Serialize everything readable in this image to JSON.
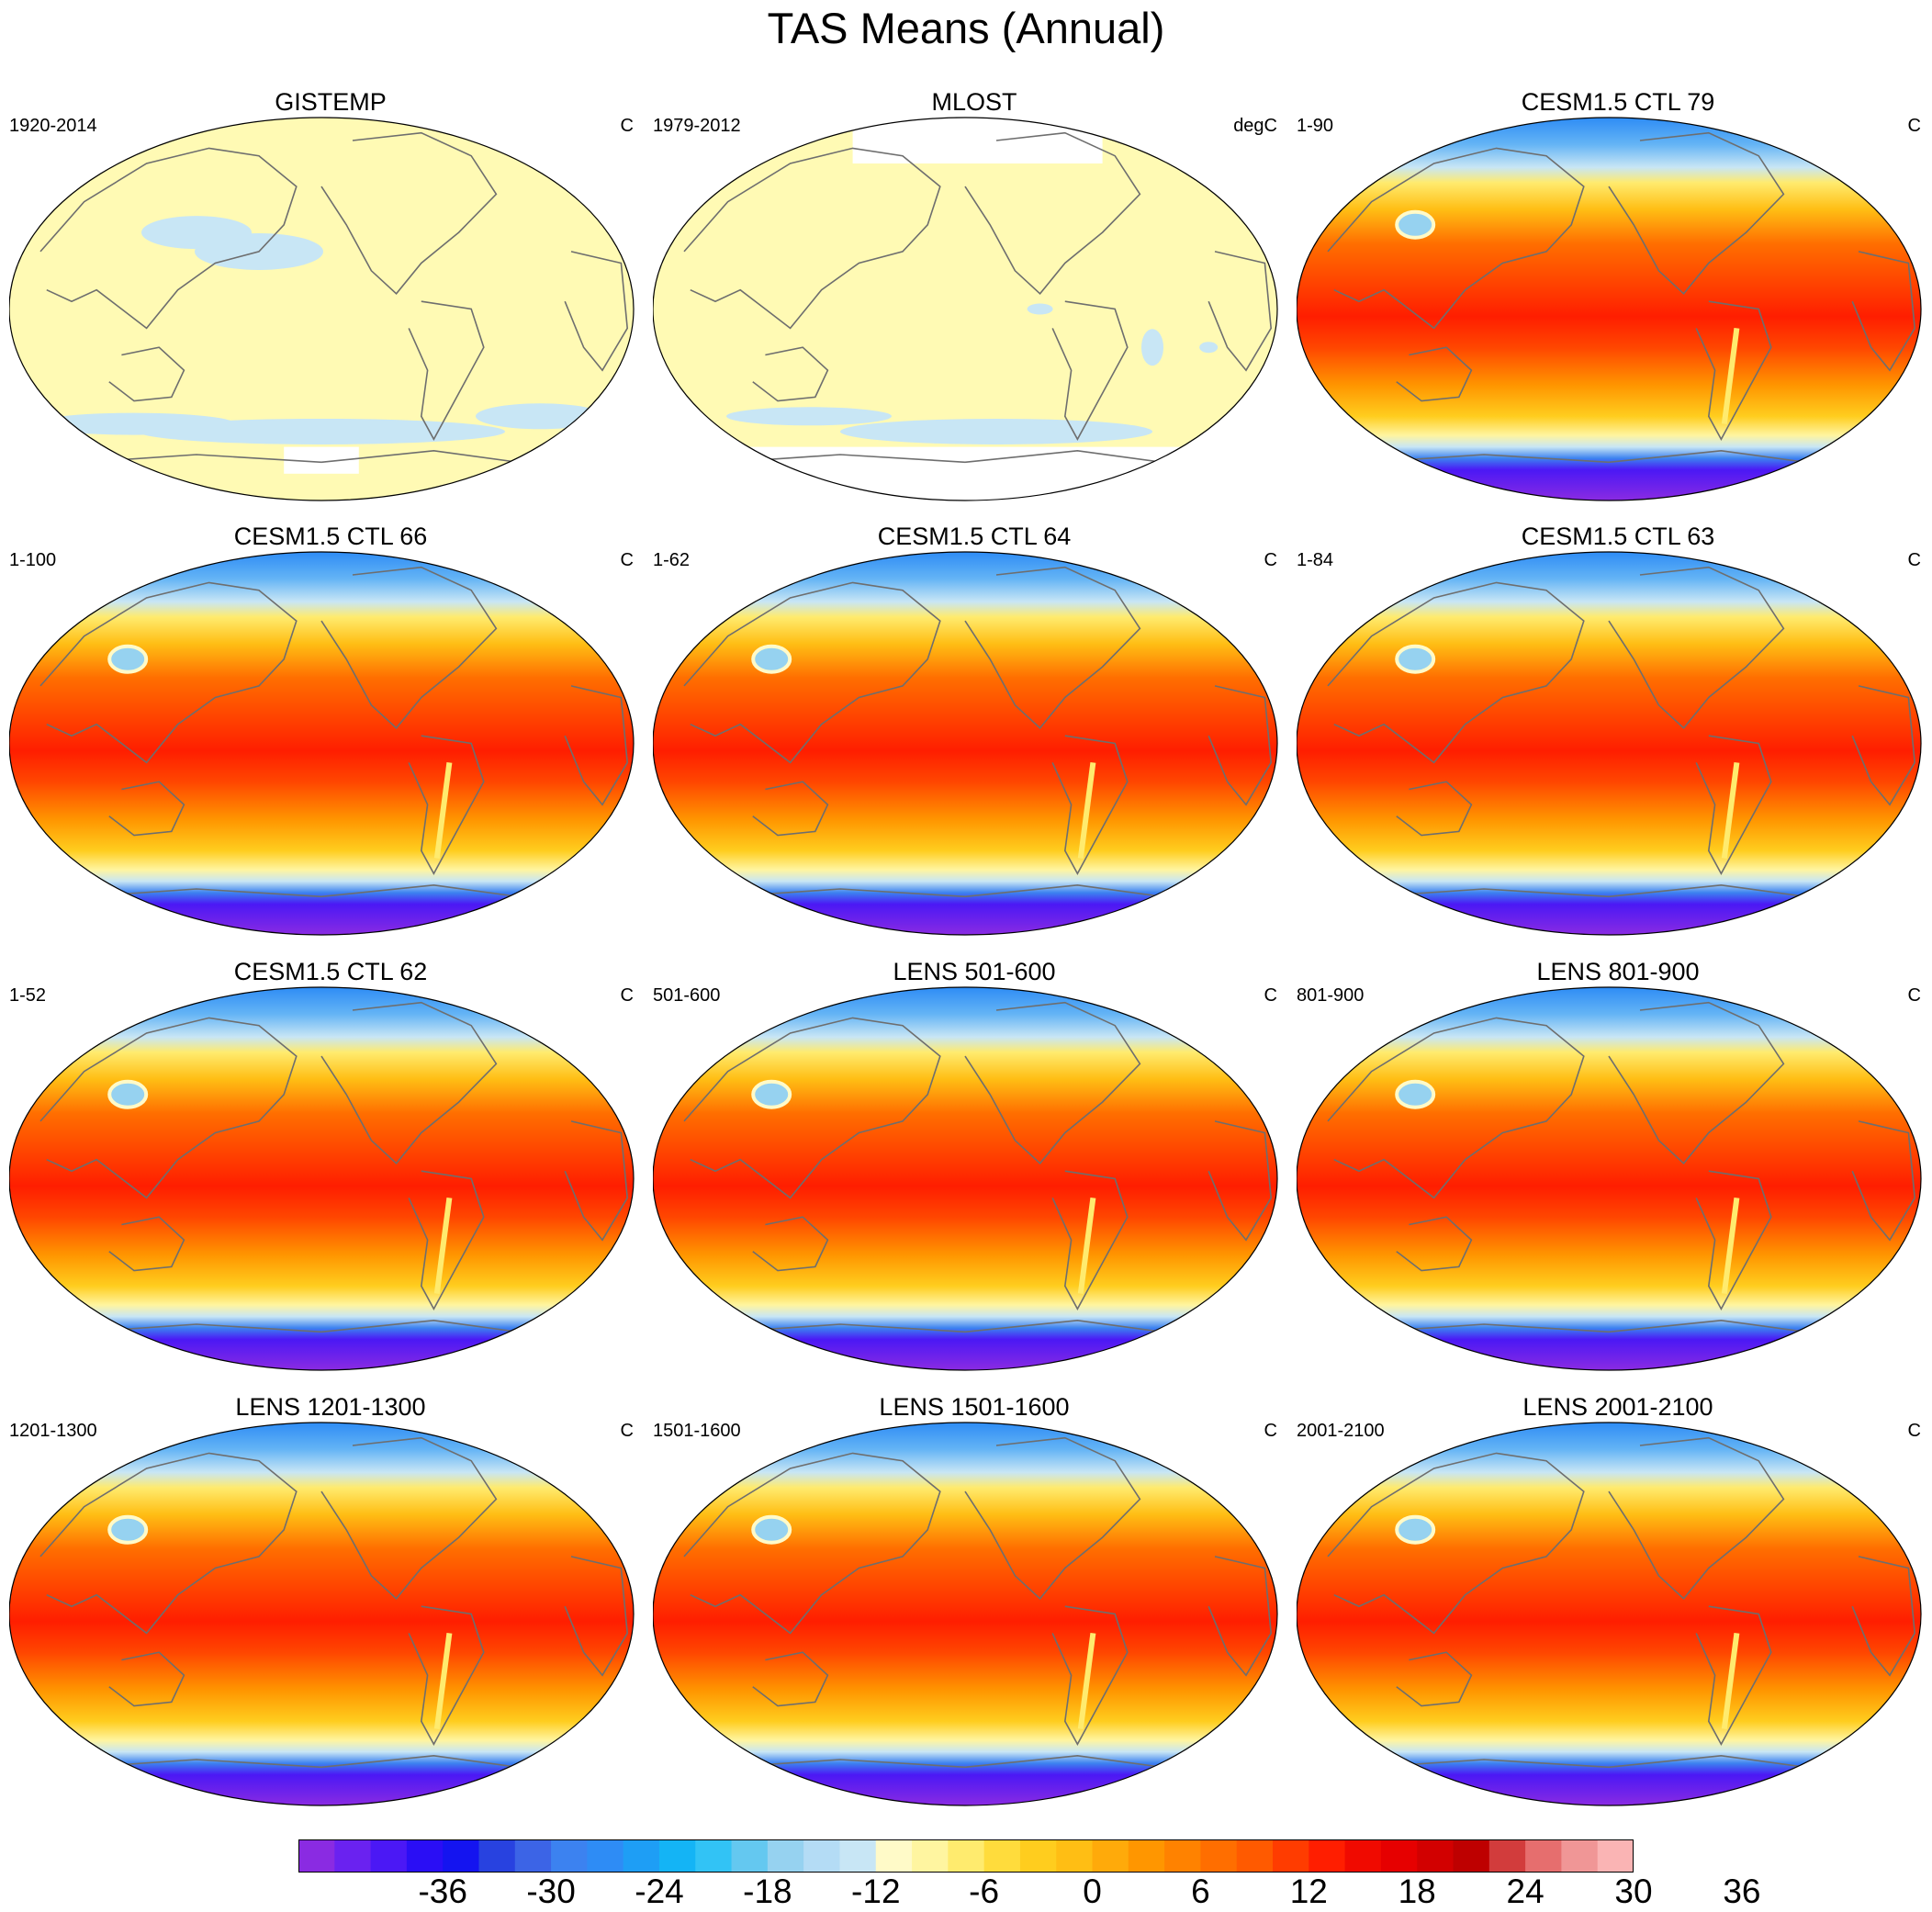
{
  "title": "TAS Means (Annual)",
  "panels": [
    {
      "title": "GISTEMP",
      "period": "1920-2014",
      "units": "C",
      "kind": "anomaly-gistemp"
    },
    {
      "title": "MLOST",
      "period": "1979-2012",
      "units": "degC",
      "kind": "anomaly-mlost"
    },
    {
      "title": "CESM1.5 CTL 79",
      "period": "1-90",
      "units": "C",
      "kind": "model"
    },
    {
      "title": "CESM1.5 CTL 66",
      "period": "1-100",
      "units": "C",
      "kind": "model"
    },
    {
      "title": "CESM1.5 CTL 64",
      "period": "1-62",
      "units": "C",
      "kind": "model"
    },
    {
      "title": "CESM1.5 CTL 63",
      "period": "1-84",
      "units": "C",
      "kind": "model"
    },
    {
      "title": "CESM1.5 CTL 62",
      "period": "1-52",
      "units": "C",
      "kind": "model"
    },
    {
      "title": "LENS 501-600",
      "period": "501-600",
      "units": "C",
      "kind": "model"
    },
    {
      "title": "LENS 801-900",
      "period": "801-900",
      "units": "C",
      "kind": "model"
    },
    {
      "title": "LENS 1201-1300",
      "period": "1201-1300",
      "units": "C",
      "kind": "model"
    },
    {
      "title": "LENS 1501-1600",
      "period": "1501-1600",
      "units": "C",
      "kind": "model"
    },
    {
      "title": "LENS 2001-2100",
      "period": "2001-2100",
      "units": "C",
      "kind": "model"
    }
  ],
  "colorbar": {
    "labels": [
      "-36",
      "-30",
      "-24",
      "-18",
      "-12",
      "-6",
      "0",
      "6",
      "12",
      "18",
      "24",
      "30",
      "36"
    ],
    "colors": [
      "#8a2be2",
      "#6a22f0",
      "#4b18f5",
      "#2a0ef5",
      "#1414f0",
      "#2842e0",
      "#3c64e6",
      "#3c82f0",
      "#2e8cf5",
      "#1e9ef5",
      "#14b4f5",
      "#32c3f5",
      "#64c8f0",
      "#96d2f0",
      "#b4dcf5",
      "#c8e6f5",
      "#fffac8",
      "#fff5a0",
      "#ffeb6e",
      "#ffdc3c",
      "#ffcd1e",
      "#ffbe14",
      "#ffaa0a",
      "#ff9600",
      "#ff8200",
      "#ff6e00",
      "#ff5a00",
      "#ff3c00",
      "#ff1e00",
      "#f00a00",
      "#e60000",
      "#d20000",
      "#be0000",
      "#d23c3c",
      "#e66e6e",
      "#f09696",
      "#fab4b4"
    ]
  },
  "colors": {
    "anomaly_fill": "#fffab4",
    "anomaly_blue": "#c8e6f5",
    "coast": "#6e6e6e",
    "missing": "#ffffff"
  }
}
